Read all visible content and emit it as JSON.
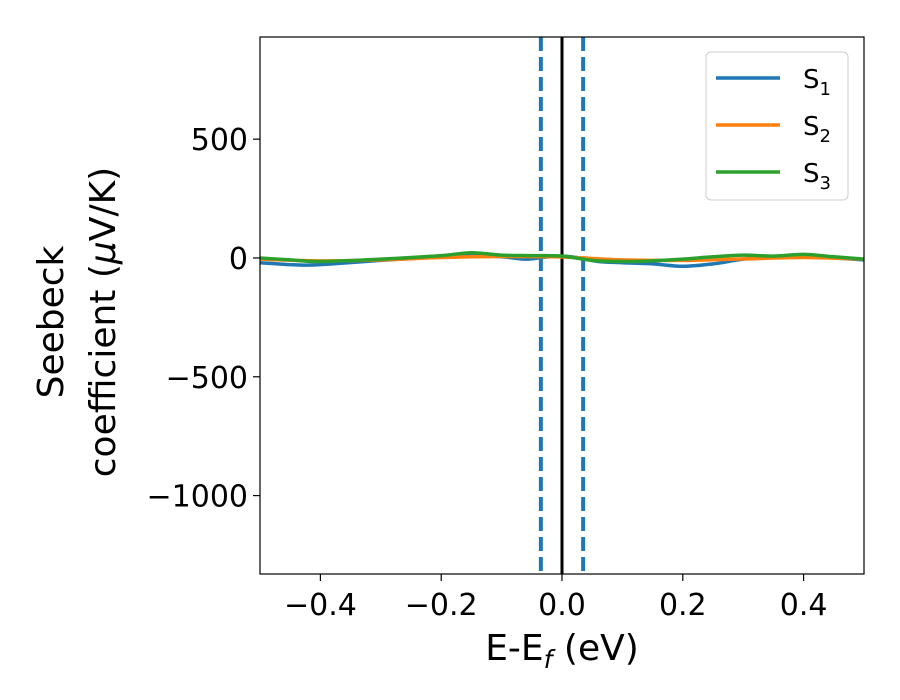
{
  "chart_data": {
    "type": "line",
    "title": "",
    "xlabel": {
      "main": "E-E",
      "sub": "f",
      "suffix": " (eV)"
    },
    "ylabel": {
      "line1": "Seebeck",
      "line2_prefix": "coefficient  (",
      "line2_mu": "μ",
      "line2_suffix": "V/K)"
    },
    "xlim": [
      -0.5,
      0.5
    ],
    "ylim": [
      -1330,
      930
    ],
    "xticks": [
      -0.4,
      -0.2,
      0.0,
      0.2,
      0.4
    ],
    "xtick_labels": [
      "−0.4",
      "−0.2",
      "0.0",
      "0.2",
      "0.4"
    ],
    "yticks": [
      500,
      0,
      -500,
      -1000
    ],
    "ytick_labels": [
      "500",
      "0",
      "−500",
      "−1000"
    ],
    "grid": false,
    "legend_position": "top-right",
    "vlines": [
      {
        "x": -0.035,
        "style": "dashed",
        "color": "#1f77b4"
      },
      {
        "x": 0.0,
        "style": "solid",
        "color": "#000000"
      },
      {
        "x": 0.035,
        "style": "dashed",
        "color": "#1f77b4"
      }
    ],
    "series": [
      {
        "name": "S",
        "sub": "1",
        "color": "#1f77b4",
        "x": [
          -0.5,
          -0.45,
          -0.42,
          -0.38,
          -0.3,
          -0.2,
          -0.15,
          -0.1,
          -0.06,
          -0.03,
          0.0,
          0.03,
          0.06,
          0.1,
          0.15,
          0.2,
          0.25,
          0.3,
          0.35,
          0.4,
          0.45,
          0.5
        ],
        "y": [
          -20,
          -28,
          -30,
          -25,
          -10,
          5,
          10,
          5,
          -5,
          3,
          8,
          0,
          -15,
          -20,
          -25,
          -35,
          -25,
          -5,
          5,
          8,
          0,
          -8
        ]
      },
      {
        "name": "S",
        "sub": "2",
        "color": "#ff7f0e",
        "x": [
          -0.5,
          -0.4,
          -0.3,
          -0.2,
          -0.1,
          0.0,
          0.1,
          0.2,
          0.3,
          0.4,
          0.5
        ],
        "y": [
          -5,
          -12,
          -8,
          2,
          6,
          4,
          -8,
          -10,
          -4,
          2,
          -5
        ]
      },
      {
        "name": "S",
        "sub": "3",
        "color": "#2ca02c",
        "x": [
          -0.5,
          -0.45,
          -0.4,
          -0.3,
          -0.2,
          -0.15,
          -0.1,
          -0.05,
          0.0,
          0.05,
          0.1,
          0.15,
          0.2,
          0.25,
          0.3,
          0.35,
          0.4,
          0.45,
          0.5
        ],
        "y": [
          0,
          -8,
          -15,
          -5,
          10,
          22,
          12,
          10,
          8,
          -10,
          -15,
          -12,
          -5,
          5,
          12,
          8,
          15,
          5,
          -5
        ]
      }
    ]
  }
}
